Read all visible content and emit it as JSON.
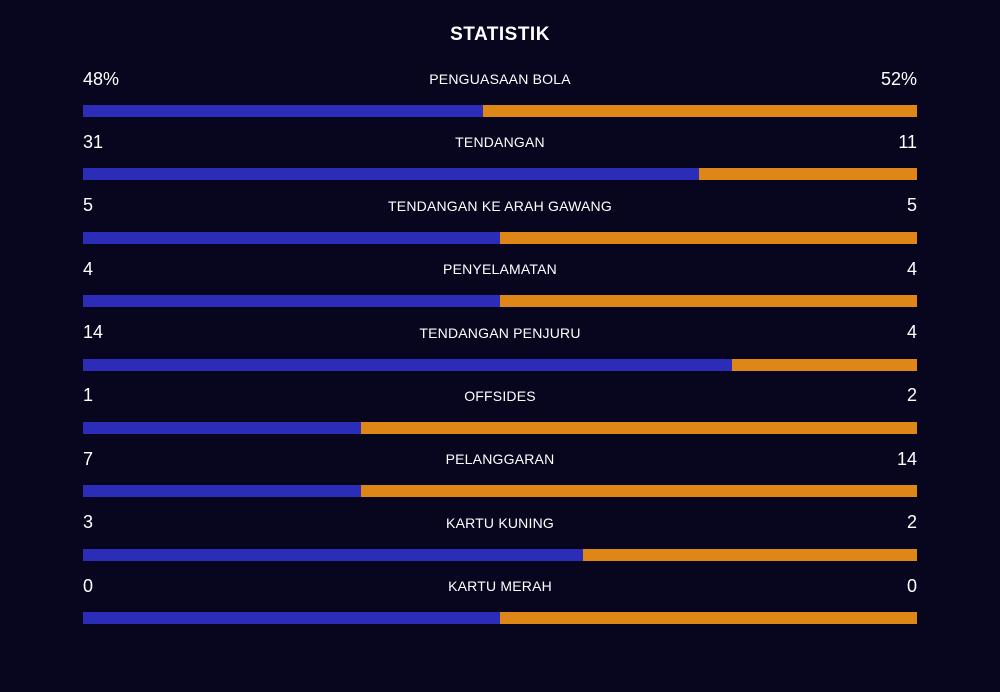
{
  "title": "STATISTIK",
  "colors": {
    "background": "#08061f",
    "home": "#2b2db8",
    "away": "#df8716"
  },
  "stats": [
    {
      "label": "PENGUASAAN BOLA",
      "home": "48%",
      "away": "52%",
      "home_share": 0.48
    },
    {
      "label": "TENDANGAN",
      "home": "31",
      "away": "11",
      "home_share": 0.7381
    },
    {
      "label": "TENDANGAN KE ARAH GAWANG",
      "home": "5",
      "away": "5",
      "home_share": 0.5
    },
    {
      "label": "PENYELAMATAN",
      "home": "4",
      "away": "4",
      "home_share": 0.5
    },
    {
      "label": "TENDANGAN PENJURU",
      "home": "14",
      "away": "4",
      "home_share": 0.7778
    },
    {
      "label": "OFFSIDES",
      "home": "1",
      "away": "2",
      "home_share": 0.3333
    },
    {
      "label": "PELANGGARAN",
      "home": "7",
      "away": "14",
      "home_share": 0.3333
    },
    {
      "label": "KARTU KUNING",
      "home": "3",
      "away": "2",
      "home_share": 0.6
    },
    {
      "label": "KARTU MERAH",
      "home": "0",
      "away": "0",
      "home_share": 0.5
    }
  ]
}
